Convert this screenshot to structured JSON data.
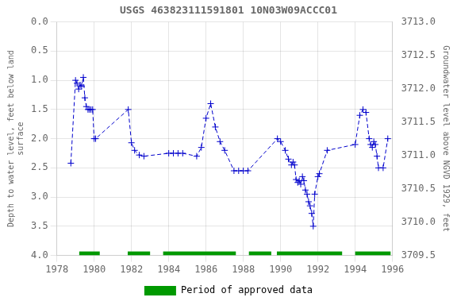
{
  "chart_data": {
    "type": "line",
    "title": "USGS 463823111591801 10N03W09ACCC01",
    "ylabel": "Depth to water level, feet below land\nsurface",
    "y2label": "Groundwater level above NGVD 1929, feet",
    "xlim": [
      1978,
      1996
    ],
    "xticks": [
      1978,
      1980,
      1982,
      1984,
      1986,
      1988,
      1990,
      1992,
      1994,
      1996
    ],
    "ylim": [
      4.0,
      0.0
    ],
    "yticks": [
      {
        "value": 0.0,
        "label": "0.0"
      },
      0.5,
      {
        "value": 1.0,
        "label": "1.0"
      },
      1.5,
      {
        "value": 2.0,
        "label": "2.0"
      },
      2.5,
      {
        "value": 3.0,
        "label": "3.0"
      },
      3.5,
      {
        "value": 4.0,
        "label": "4.0"
      }
    ],
    "y2lim": [
      3709.5,
      3713.0
    ],
    "y2ticks": [
      3709.5,
      {
        "value": 3710.0,
        "label": "3710.0"
      },
      3710.5,
      {
        "value": 3711.0,
        "label": "3711.0"
      },
      3711.5,
      {
        "value": 3712.0,
        "label": "3712.0"
      },
      3712.5,
      {
        "value": 3713.0,
        "label": "3713.0"
      }
    ],
    "grid": true,
    "color": "#0000cc",
    "marker": "+",
    "line_style": "dashed",
    "x": [
      1978.75,
      1979.0,
      1979.08,
      1979.17,
      1979.25,
      1979.33,
      1979.42,
      1979.5,
      1979.58,
      1979.67,
      1979.75,
      1979.83,
      1979.92,
      1980.0,
      1980.08,
      1981.83,
      1982.0,
      1982.17,
      1982.42,
      1982.67,
      1984.0,
      1984.25,
      1984.5,
      1984.75,
      1985.5,
      1985.75,
      1986.0,
      1986.25,
      1986.5,
      1986.75,
      1987.0,
      1987.5,
      1987.75,
      1988.0,
      1988.25,
      1989.83,
      1990.0,
      1990.25,
      1990.42,
      1990.58,
      1990.67,
      1990.75,
      1990.83,
      1990.92,
      1991.0,
      1991.08,
      1991.17,
      1991.25,
      1991.33,
      1991.42,
      1991.5,
      1991.58,
      1991.67,
      1991.75,
      1991.83,
      1992.0,
      1992.08,
      1992.5,
      1994.0,
      1994.25,
      1994.42,
      1994.58,
      1994.75,
      1994.83,
      1994.92,
      1995.0,
      1995.08,
      1995.17,
      1995.25,
      1995.5,
      1995.75
    ],
    "values": [
      2.42,
      1.0,
      1.05,
      1.15,
      1.08,
      1.1,
      0.95,
      1.3,
      1.45,
      1.5,
      1.5,
      1.5,
      1.5,
      2.0,
      2.0,
      1.5,
      2.07,
      2.2,
      2.28,
      2.3,
      2.25,
      2.25,
      2.25,
      2.25,
      2.3,
      2.15,
      1.65,
      1.4,
      1.8,
      2.05,
      2.2,
      2.55,
      2.55,
      2.55,
      2.55,
      2.0,
      2.05,
      2.2,
      2.35,
      2.45,
      2.4,
      2.45,
      2.7,
      2.75,
      2.72,
      2.78,
      2.65,
      2.72,
      2.88,
      2.95,
      3.08,
      3.15,
      3.28,
      3.5,
      2.95,
      2.65,
      2.6,
      2.2,
      2.1,
      1.6,
      1.5,
      1.55,
      2.0,
      2.1,
      2.15,
      2.05,
      2.1,
      2.3,
      2.5,
      2.5,
      2.0
    ],
    "approved_periods": {
      "name": "Period of approved data",
      "color": "#009900",
      "ranges": [
        [
          1979.2,
          1980.3
        ],
        [
          1981.8,
          1983.0
        ],
        [
          1983.7,
          1987.6
        ],
        [
          1988.3,
          1989.5
        ],
        [
          1989.8,
          1993.3
        ],
        [
          1994.0,
          1995.9
        ]
      ]
    }
  }
}
